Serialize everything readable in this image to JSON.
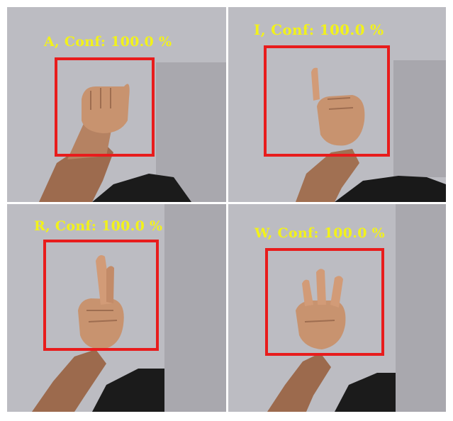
{
  "colors": {
    "label_yellow": "#f2f21a",
    "box_red": "#e81c1c",
    "wall": "#b9b9bf",
    "skin": "#c58f6b",
    "shirt": "#1a1a1a"
  },
  "panels": [
    {
      "letter": "A",
      "label": "A, Conf: 100.0 %",
      "gesture": "fist"
    },
    {
      "letter": "I",
      "label": "I, Conf: 100.0 %",
      "gesture": "pinky-up"
    },
    {
      "letter": "R",
      "label": "R, Conf: 100.0 %",
      "gesture": "crossed-fingers"
    },
    {
      "letter": "W",
      "label": "W, Conf: 100.0 %",
      "gesture": "three-fingers"
    }
  ],
  "caption": ""
}
